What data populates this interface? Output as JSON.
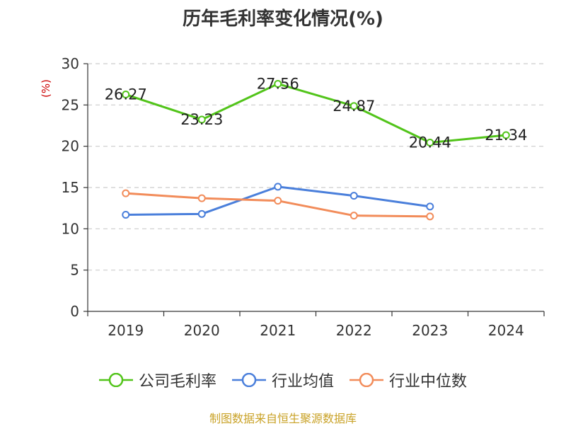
{
  "chart_data": {
    "type": "line",
    "title": "历年毛利率变化情况(%)",
    "ylabel": "(%)",
    "xlabel": "",
    "categories": [
      "2019",
      "2020",
      "2021",
      "2022",
      "2023",
      "2024"
    ],
    "ylim": [
      0,
      30
    ],
    "yticks": [
      0,
      5,
      10,
      15,
      20,
      25,
      30
    ],
    "grid": "horizontal-dashed",
    "legend_position": "bottom",
    "series": [
      {
        "name": "公司毛利率",
        "color": "#52c41a",
        "show_labels": true,
        "values": [
          26.27,
          23.23,
          27.56,
          24.87,
          20.44,
          21.34
        ],
        "labels": [
          "26.27",
          "23.23",
          "27.56",
          "24.87",
          "20.44",
          "21.34"
        ]
      },
      {
        "name": "行业均值",
        "color": "#4a7fdb",
        "show_labels": false,
        "values": [
          11.7,
          11.8,
          15.1,
          14.0,
          12.7,
          null
        ]
      },
      {
        "name": "行业中位数",
        "color": "#f28c5a",
        "show_labels": false,
        "values": [
          14.3,
          13.7,
          13.4,
          11.6,
          11.5,
          null
        ]
      }
    ]
  },
  "source": {
    "text": "制图数据来自恒生聚源数据库",
    "color": "#c9a227"
  },
  "colors": {
    "ylabel": "#cc0000",
    "axis": "#333333",
    "grid": "#cccccc"
  }
}
